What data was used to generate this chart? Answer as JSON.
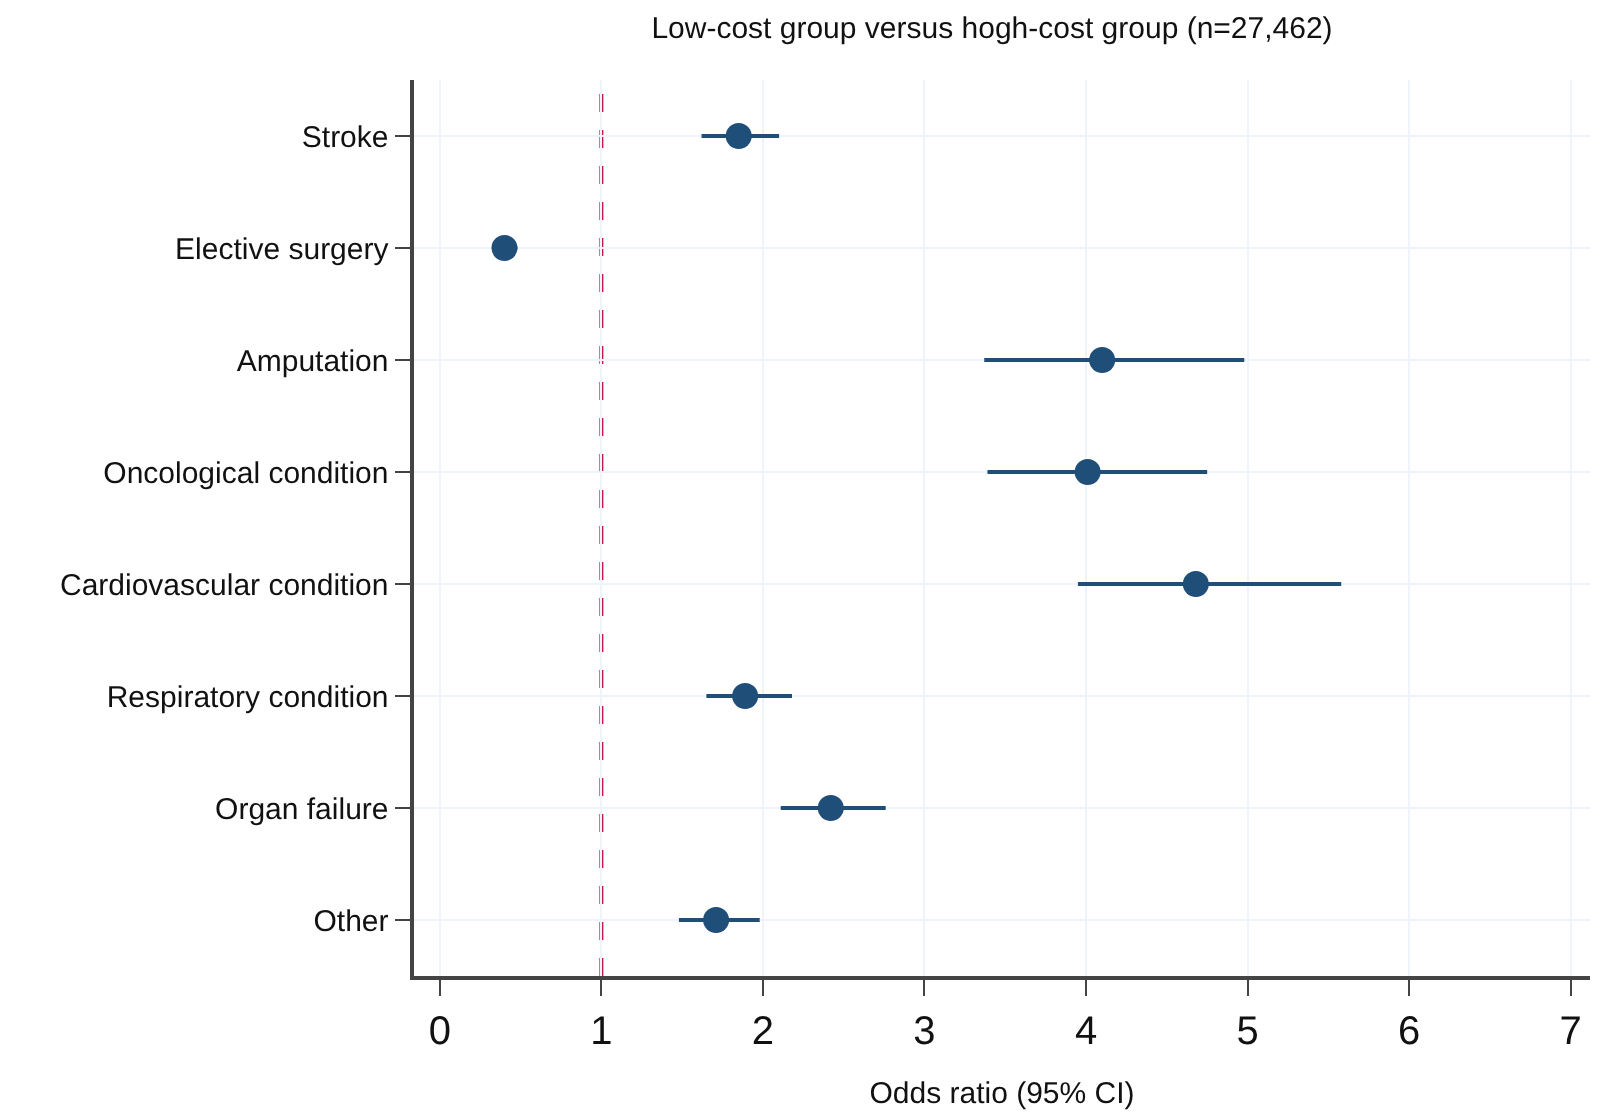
{
  "chart_data": {
    "type": "scatter",
    "orientation": "horizontal",
    "title": "Low-cost group versus hogh-cost group (n=27,462)",
    "xlabel": "Odds ratio (95% CI)",
    "categories": [
      "Stroke",
      "Elective surgery",
      "Amputation",
      "Oncological condition",
      "Cardiovascular condition",
      "Respiratory condition",
      "Organ failure",
      "Other"
    ],
    "series": [
      {
        "color": "#1f4e79",
        "values": [
          1.85,
          0.4,
          4.1,
          4.01,
          4.68,
          1.89,
          2.42,
          1.71
        ],
        "errors": [
          [
            1.62,
            2.1
          ],
          [
            0.35,
            0.48
          ],
          [
            3.37,
            4.98
          ],
          [
            3.39,
            4.75
          ],
          [
            3.95,
            5.58
          ],
          [
            1.65,
            2.18
          ],
          [
            2.11,
            2.76
          ],
          [
            1.48,
            1.98
          ]
        ]
      }
    ],
    "xlim": [
      -0.16,
      7.12
    ],
    "xticks": [
      0,
      1,
      2,
      3,
      4,
      5,
      6,
      7
    ],
    "grid": true,
    "marker": "circle",
    "ref_lines": [
      {
        "axis": "x",
        "value": 1,
        "color": "#c8174a",
        "line_style": "dashed"
      }
    ]
  }
}
